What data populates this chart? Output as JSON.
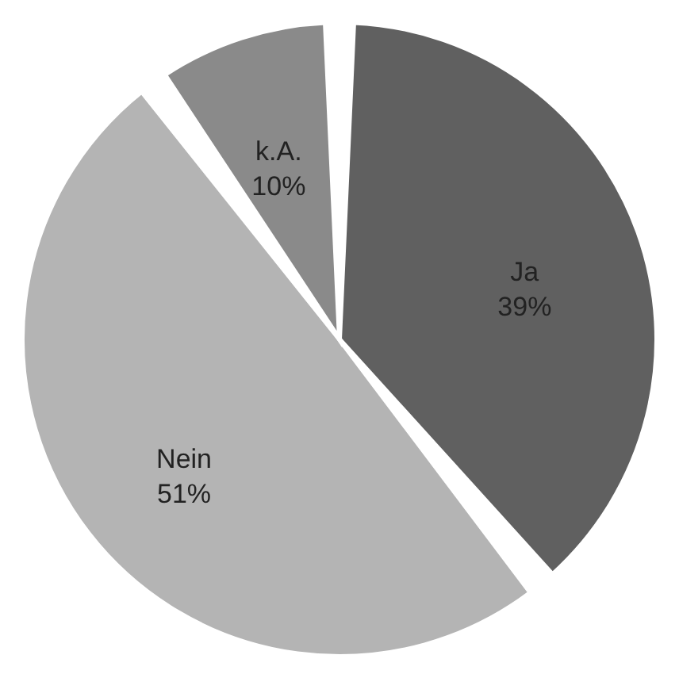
{
  "chart_data": {
    "type": "pie",
    "categories": [
      "Ja",
      "Nein",
      "k.A."
    ],
    "values": [
      39,
      51,
      10
    ],
    "colors": [
      "#606060",
      "#b4b4b4",
      "#8a8a8a"
    ],
    "value_labels": [
      "39%",
      "51%",
      "10%"
    ]
  }
}
